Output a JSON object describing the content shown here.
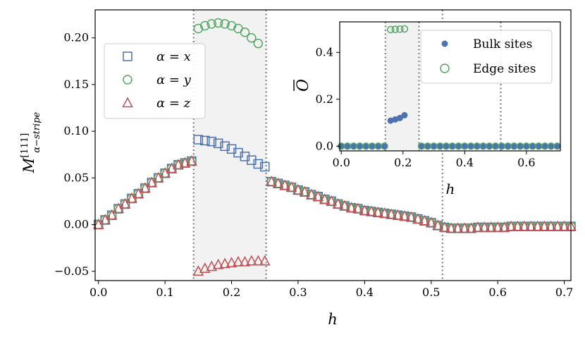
{
  "colors": {
    "x": "#4C72B0",
    "y": "#55A868",
    "z": "#C44E52",
    "shade": "#f2f2f2",
    "vline": "#808080"
  },
  "chart_data": [
    {
      "type": "scatter",
      "xlabel": "h",
      "ylabel": "M",
      "ylabel_sup": "[111]",
      "ylabel_sub": "α−stripe",
      "xlim": [
        -0.005,
        0.71
      ],
      "ylim": [
        -0.06,
        0.23
      ],
      "xticks": [
        0.0,
        0.1,
        0.2,
        0.3,
        0.4,
        0.5,
        0.6,
        0.7
      ],
      "xtick_labels": [
        "0.0",
        "0.1",
        "0.2",
        "0.3",
        "0.4",
        "0.5",
        "0.6",
        "0.7"
      ],
      "yticks": [
        -0.05,
        0.0,
        0.05,
        0.1,
        0.15,
        0.2
      ],
      "ytick_labels": [
        "−0.05",
        "0.00",
        "0.05",
        "0.10",
        "0.15",
        "0.20"
      ],
      "vlines": [
        0.143,
        0.252,
        0.517
      ],
      "shaded_region": [
        0.143,
        0.252
      ],
      "legend": {
        "placement": "upper-left",
        "entries": [
          "α = x",
          "α = y",
          "α = z"
        ]
      },
      "x": [
        0.0,
        0.01,
        0.02,
        0.03,
        0.04,
        0.05,
        0.06,
        0.07,
        0.08,
        0.09,
        0.1,
        0.11,
        0.12,
        0.13,
        0.14,
        0.15,
        0.16,
        0.17,
        0.18,
        0.19,
        0.2,
        0.21,
        0.22,
        0.23,
        0.24,
        0.25,
        0.26,
        0.27,
        0.28,
        0.29,
        0.3,
        0.31,
        0.32,
        0.33,
        0.34,
        0.35,
        0.36,
        0.37,
        0.38,
        0.39,
        0.4,
        0.41,
        0.42,
        0.43,
        0.44,
        0.45,
        0.46,
        0.47,
        0.48,
        0.49,
        0.5,
        0.51,
        0.52,
        0.53,
        0.54,
        0.55,
        0.56,
        0.57,
        0.58,
        0.59,
        0.6,
        0.61,
        0.62,
        0.63,
        0.64,
        0.65,
        0.66,
        0.67,
        0.68,
        0.69,
        0.7,
        0.71
      ],
      "series": [
        {
          "key": "x",
          "marker": "square",
          "values": [
            0.0,
            0.005,
            0.01,
            0.017,
            0.022,
            0.028,
            0.033,
            0.039,
            0.045,
            0.05,
            0.055,
            0.06,
            0.064,
            0.066,
            0.068,
            0.091,
            0.09,
            0.089,
            0.087,
            0.084,
            0.081,
            0.077,
            0.073,
            0.069,
            0.065,
            0.062,
            0.046,
            0.044,
            0.042,
            0.04,
            0.037,
            0.035,
            0.032,
            0.03,
            0.027,
            0.025,
            0.022,
            0.02,
            0.018,
            0.017,
            0.015,
            0.014,
            0.013,
            0.012,
            0.011,
            0.01,
            0.009,
            0.008,
            0.006,
            0.004,
            0.002,
            -0.001,
            -0.003,
            -0.004,
            -0.004,
            -0.004,
            -0.004,
            -0.003,
            -0.003,
            -0.003,
            -0.003,
            -0.003,
            -0.002,
            -0.002,
            -0.002,
            -0.002,
            -0.002,
            -0.002,
            -0.002,
            -0.002,
            -0.002,
            -0.002
          ]
        },
        {
          "key": "y",
          "marker": "circle",
          "values": [
            0.0,
            0.005,
            0.01,
            0.017,
            0.022,
            0.028,
            0.033,
            0.039,
            0.045,
            0.05,
            0.055,
            0.06,
            0.064,
            0.066,
            0.068,
            0.21,
            0.213,
            0.215,
            0.216,
            0.215,
            0.213,
            0.21,
            0.206,
            0.2,
            0.194,
            null,
            0.046,
            0.044,
            0.042,
            0.04,
            0.037,
            0.035,
            0.032,
            0.03,
            0.027,
            0.025,
            0.022,
            0.02,
            0.018,
            0.017,
            0.015,
            0.014,
            0.013,
            0.012,
            0.011,
            0.01,
            0.009,
            0.008,
            0.006,
            0.004,
            0.002,
            -0.001,
            -0.003,
            -0.004,
            -0.004,
            -0.004,
            -0.004,
            -0.003,
            -0.003,
            -0.003,
            -0.003,
            -0.003,
            -0.002,
            -0.002,
            -0.002,
            -0.002,
            -0.002,
            -0.002,
            -0.002,
            -0.002,
            -0.002,
            -0.002
          ]
        },
        {
          "key": "z",
          "marker": "triangle",
          "values": [
            0.0,
            0.005,
            0.01,
            0.017,
            0.022,
            0.028,
            0.033,
            0.039,
            0.045,
            0.05,
            0.055,
            0.06,
            0.064,
            0.066,
            0.068,
            -0.05,
            -0.047,
            -0.045,
            -0.043,
            -0.042,
            -0.041,
            -0.04,
            -0.04,
            -0.039,
            -0.039,
            -0.039,
            0.046,
            0.044,
            0.042,
            0.04,
            0.037,
            0.035,
            0.032,
            0.03,
            0.027,
            0.025,
            0.022,
            0.02,
            0.018,
            0.017,
            0.015,
            0.014,
            0.013,
            0.012,
            0.011,
            0.01,
            0.009,
            0.008,
            0.006,
            0.004,
            0.002,
            -0.001,
            -0.003,
            -0.004,
            -0.004,
            -0.004,
            -0.004,
            -0.003,
            -0.003,
            -0.003,
            -0.003,
            -0.003,
            -0.002,
            -0.002,
            -0.002,
            -0.002,
            -0.002,
            -0.002,
            -0.002,
            -0.002,
            -0.002,
            -0.002
          ]
        }
      ]
    },
    {
      "type": "scatter",
      "placement": "inset-upper-right",
      "xlabel": "h",
      "ylabel": "O",
      "xlim": [
        -0.005,
        0.71
      ],
      "ylim": [
        -0.02,
        0.53
      ],
      "xticks": [
        0.0,
        0.2,
        0.4,
        0.6
      ],
      "xtick_labels": [
        "0.0",
        "0.2",
        "0.4",
        "0.6"
      ],
      "yticks": [
        0.0,
        0.2,
        0.4
      ],
      "ytick_labels": [
        "0.0",
        "0.2",
        "0.4"
      ],
      "vlines": [
        0.143,
        0.252,
        0.517
      ],
      "shaded_region": [
        0.143,
        0.252
      ],
      "legend": {
        "placement": "upper-right",
        "entries": [
          "Bulk sites",
          "Edge sites"
        ]
      },
      "series": [
        {
          "key": "bulk",
          "marker": "filled-circle",
          "x": [
            0.0,
            0.02,
            0.04,
            0.06,
            0.08,
            0.1,
            0.12,
            0.14,
            0.16,
            0.175,
            0.19,
            0.205,
            0.26,
            0.28,
            0.3,
            0.32,
            0.34,
            0.36,
            0.38,
            0.4,
            0.42,
            0.44,
            0.46,
            0.48,
            0.5,
            0.52,
            0.54,
            0.56,
            0.58,
            0.6,
            0.62,
            0.64,
            0.66,
            0.68,
            0.7
          ],
          "values": [
            0.0,
            0.0,
            0.0,
            0.0,
            0.0,
            0.0,
            0.0,
            0.0,
            0.109,
            0.114,
            0.12,
            0.132,
            0.0,
            0.0,
            0.0,
            0.0,
            0.0,
            0.0,
            0.0,
            0.0,
            0.0,
            0.0,
            0.0,
            0.0,
            0.0,
            0.0,
            0.0,
            0.0,
            0.0,
            0.0,
            0.0,
            0.0,
            0.0,
            0.0,
            0.0
          ]
        },
        {
          "key": "edge",
          "marker": "open-circle",
          "x": [
            0.0,
            0.02,
            0.04,
            0.06,
            0.08,
            0.1,
            0.12,
            0.14,
            0.16,
            0.175,
            0.19,
            0.205,
            0.26,
            0.28,
            0.3,
            0.32,
            0.34,
            0.36,
            0.38,
            0.4,
            0.42,
            0.44,
            0.46,
            0.48,
            0.5,
            0.52,
            0.54,
            0.56,
            0.58,
            0.6,
            0.62,
            0.64,
            0.66,
            0.68,
            0.7
          ],
          "values": [
            0.0,
            0.0,
            0.0,
            0.0,
            0.0,
            0.0,
            0.0,
            0.0,
            0.497,
            0.498,
            0.499,
            0.5,
            0.0,
            0.0,
            0.0,
            0.0,
            0.0,
            0.0,
            0.0,
            0.0,
            0.0,
            0.0,
            0.0,
            0.0,
            0.0,
            0.0,
            0.0,
            0.0,
            0.0,
            0.0,
            0.0,
            0.0,
            0.0,
            0.0,
            0.0
          ]
        }
      ]
    }
  ]
}
